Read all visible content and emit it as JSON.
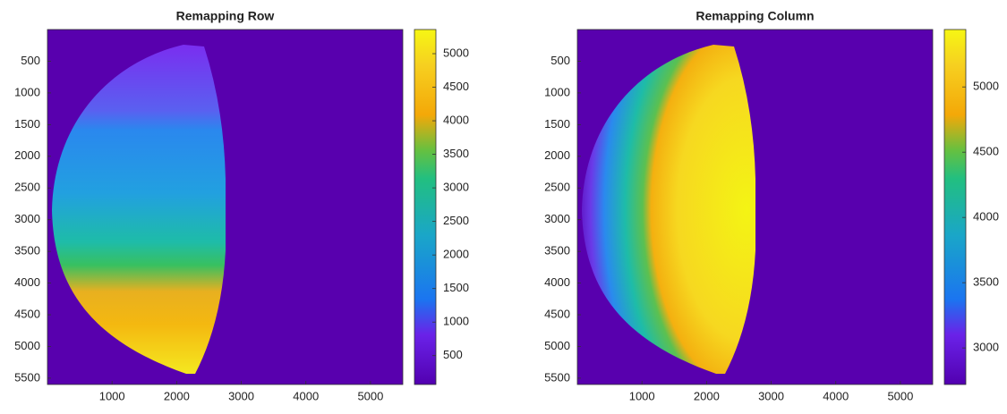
{
  "chart_data": [
    {
      "type": "heatmap",
      "title": "Remapping Row",
      "xlim": [
        0,
        5500
      ],
      "xticks": [
        1000,
        2000,
        3000,
        4000,
        5000
      ],
      "ylim": [
        0,
        5600
      ],
      "yticks": [
        500,
        1000,
        1500,
        2000,
        2500,
        3000,
        3500,
        4000,
        4500,
        5000,
        5500
      ],
      "clim": [
        70,
        5360
      ],
      "cticks": [
        500,
        1000,
        1500,
        2000,
        2500,
        3000,
        3500,
        4000,
        4500,
        5000
      ]
    },
    {
      "type": "heatmap",
      "title": "Remapping Column",
      "xlim": [
        0,
        5500
      ],
      "xticks": [
        1000,
        2000,
        3000,
        4000,
        5000
      ],
      "ylim": [
        0,
        5600
      ],
      "yticks": [
        500,
        1000,
        1500,
        2000,
        2500,
        3000,
        3500,
        4000,
        4500,
        5000,
        5500
      ],
      "clim": [
        2720,
        5440
      ],
      "cticks": [
        3000,
        3500,
        4000,
        4500,
        5000
      ]
    }
  ]
}
